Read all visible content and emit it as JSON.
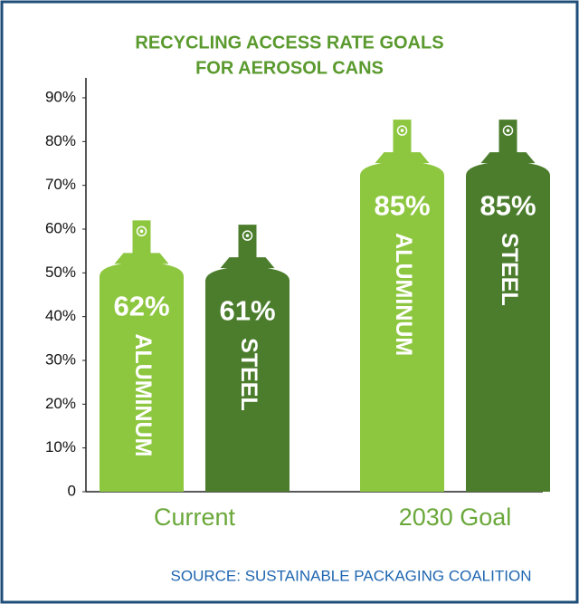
{
  "chart_data": {
    "type": "bar",
    "title": [
      "RECYCLING ACCESS RATE GOALS",
      "FOR AEROSOL CANS"
    ],
    "categories": [
      "Current",
      "2030 Goal"
    ],
    "series": [
      {
        "name": "ALUMINUM",
        "color": "#8dc63f",
        "values": [
          62,
          85
        ],
        "value_labels": [
          "62%",
          "85%"
        ]
      },
      {
        "name": "STEEL",
        "color": "#4b7d2c",
        "values": [
          61,
          85
        ],
        "value_labels": [
          "61%",
          "85%"
        ]
      }
    ],
    "ylim": [
      0,
      90
    ],
    "yticks": [
      0,
      {
        "value": 10,
        "label": "10%"
      },
      {
        "value": 20,
        "label": "20%"
      },
      {
        "value": 30,
        "label": "30%"
      },
      {
        "value": 40,
        "label": "40%"
      },
      {
        "value": 50,
        "label": "50%"
      },
      {
        "value": 60,
        "label": "60%"
      },
      {
        "value": 70,
        "label": "70%"
      },
      {
        "value": 80,
        "label": "80%"
      },
      {
        "value": 90,
        "label": "90%"
      }
    ],
    "source": "SOURCE: SUSTAINABLE PACKAGING COALITION"
  }
}
